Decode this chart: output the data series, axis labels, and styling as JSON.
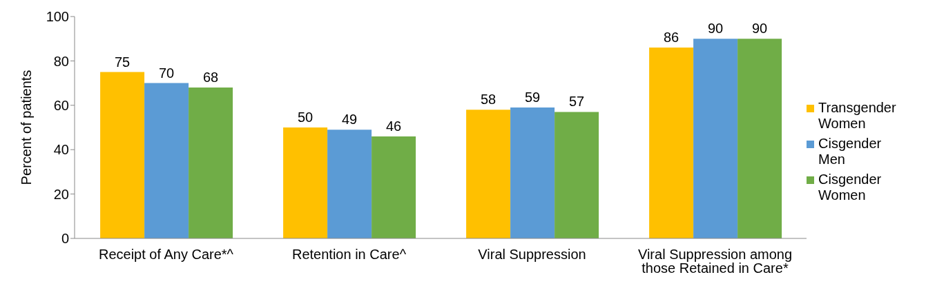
{
  "chart_data": {
    "type": "bar",
    "ylabel": "Percent of patients",
    "categories": [
      "Receipt of Any Care*^",
      "Retention in Care^",
      "Viral Suppression",
      "Viral Suppression among those Retained in Care*"
    ],
    "series": [
      {
        "name": "Transgender Women",
        "color": "#ffc000",
        "values": [
          75,
          50,
          58,
          86
        ]
      },
      {
        "name": "Cisgender Men",
        "color": "#5b9bd5",
        "values": [
          70,
          49,
          59,
          90
        ]
      },
      {
        "name": "Cisgender Women",
        "color": "#70ad47",
        "values": [
          68,
          46,
          57,
          90
        ]
      }
    ],
    "ylim": [
      0,
      100
    ],
    "yticks": [
      0,
      20,
      40,
      60,
      80,
      100
    ],
    "grid": false,
    "legend": "right",
    "data_labels": true
  }
}
